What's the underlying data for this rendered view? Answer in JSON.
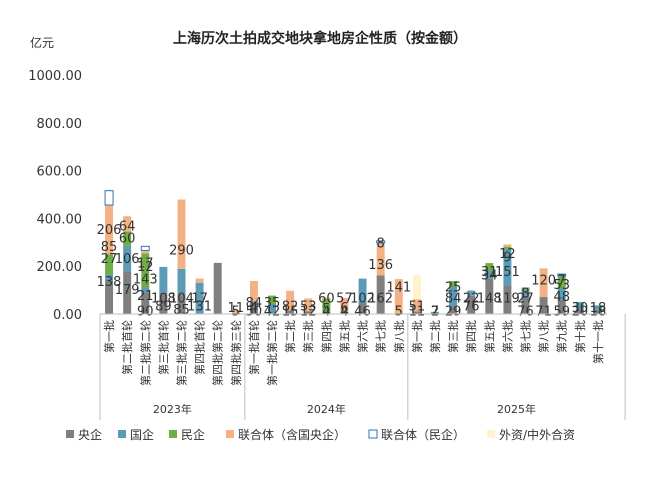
{
  "chart_data": {
    "type": "bar",
    "stacked": true,
    "title": "上海历次土拍成交地块拿地房企性质（按金额）",
    "unit": "亿元",
    "ylim": [
      0,
      1000
    ],
    "yticks": [
      "0.00",
      "200.00",
      "400.00",
      "600.00",
      "800.00",
      "1000.00"
    ],
    "grid": false,
    "legend_position": "bottom",
    "series_order": [
      "central",
      "state",
      "private",
      "jv_central",
      "jv_private",
      "foreign"
    ],
    "series": [
      {
        "key": "central",
        "name": "央企",
        "color": "#7f7f7f",
        "marker": "solid"
      },
      {
        "key": "state",
        "name": "国企",
        "color": "#5b9bb5",
        "marker": "solid"
      },
      {
        "key": "private",
        "name": "民企",
        "color": "#70ad47",
        "marker": "solid"
      },
      {
        "key": "jv_central",
        "name": "联合体（含国央企）",
        "color": "#f4b183",
        "marker": "solid"
      },
      {
        "key": "jv_private",
        "name": "联合体（民企）",
        "color": "#ffffff",
        "marker": "outline"
      },
      {
        "key": "foreign",
        "name": "外资/中外合资",
        "color": "#fff2cc",
        "marker": "solid"
      }
    ],
    "groups": [
      {
        "label": "2023年",
        "start": 0,
        "end": 7
      },
      {
        "label": "2024年",
        "start": 8,
        "end": 16
      },
      {
        "label": "2025年",
        "start": 17,
        "end": 28
      }
    ],
    "categories": [
      {
        "label": "第一批",
        "values": {
          "central": 138,
          "state": 27,
          "private": 85,
          "jv_central": 206,
          "jv_private": 60
        }
      },
      {
        "label": "第二批首轮",
        "values": {
          "central": 179,
          "state": 106,
          "private": 60,
          "jv_central": 64
        }
      },
      {
        "label": "第二批第二轮",
        "values": {
          "central": 90,
          "state": 21,
          "private": 143,
          "jv_central": 12,
          "jv_private": 17
        }
      },
      {
        "label": "第三批首轮",
        "values": {
          "central": 89,
          "state": 108
        }
      },
      {
        "label": "第三批第二轮",
        "values": {
          "central": 85,
          "state": 104,
          "jv_central": 290
        }
      },
      {
        "label": "第四批首轮",
        "values": {
          "state": 131,
          "jv_central": 17
        }
      },
      {
        "label": "第四批第二轮",
        "values": {
          "central": 214
        }
      },
      {
        "label": "第四批第三轮",
        "values": {
          "central": 5,
          "jv_central": 11
        }
      },
      {
        "label": "第一批首轮",
        "values": {
          "central": 50,
          "state": 4,
          "jv_central": 84
        }
      },
      {
        "label": "第一批第二轮",
        "values": {
          "state": 42,
          "private": 35
        }
      },
      {
        "label": "第二批",
        "values": {
          "central": 15,
          "jv_central": 82
        }
      },
      {
        "label": "第三批",
        "values": {
          "central": 12,
          "jv_central": 53
        }
      },
      {
        "label": "第四批",
        "values": {
          "central": 4,
          "private": 60,
          "jv_central": 5
        }
      },
      {
        "label": "第五批",
        "values": {
          "central": 4,
          "state": 6,
          "jv_central": 57
        }
      },
      {
        "label": "第六批",
        "values": {
          "central": 46,
          "state": 102
        }
      },
      {
        "label": "第七批",
        "values": {
          "central": 162,
          "jv_central": 136,
          "jv_private": 8
        }
      },
      {
        "label": "第八批",
        "values": {
          "private": 5,
          "jv_central": 141
        }
      },
      {
        "label": "第一批",
        "values": {
          "central": 11,
          "jv_central": 51,
          "foreign": 100
        }
      },
      {
        "label": "第二批",
        "values": {
          "central": 2,
          "state": 7
        }
      },
      {
        "label": "第三批",
        "values": {
          "central": 29,
          "state": 84,
          "private": 25
        }
      },
      {
        "label": "第四批",
        "values": {
          "central": 76,
          "state": 22
        }
      },
      {
        "label": "第五批",
        "values": {
          "central": 148,
          "state": 34,
          "private": 31
        }
      },
      {
        "label": "第六批",
        "values": {
          "central": 119,
          "state": 151,
          "private": 12,
          "jv_central": 9
        }
      },
      {
        "label": "第七批",
        "values": {
          "central": 76,
          "state": 27,
          "private": 8
        }
      },
      {
        "label": "第八批",
        "values": {
          "central": 71,
          "jv_central": 120
        }
      },
      {
        "label": "第九批",
        "values": {
          "central": 59,
          "state": 48,
          "private": 53,
          "jv_private": 7
        }
      },
      {
        "label": "第十批",
        "values": {
          "central": 20,
          "state": 30
        }
      },
      {
        "label": "第十一批",
        "values": {
          "central": 18,
          "state": 18
        }
      }
    ],
    "data_labels": [
      {
        "i": 0,
        "y": 138,
        "t": "138"
      },
      {
        "i": 0,
        "y": 235,
        "t": "27"
      },
      {
        "i": 0,
        "y": 285,
        "t": "85"
      },
      {
        "i": 0,
        "y": 355,
        "t": "206"
      },
      {
        "i": 1,
        "y": 104,
        "t": "179"
      },
      {
        "i": 1,
        "y": 235,
        "t": "106"
      },
      {
        "i": 1,
        "y": 320,
        "t": "60"
      },
      {
        "i": 1,
        "y": 370,
        "t": "64"
      },
      {
        "i": 2,
        "y": 15,
        "t": "90"
      },
      {
        "i": 2,
        "y": 80,
        "t": "21"
      },
      {
        "i": 2,
        "y": 148,
        "t": "143"
      },
      {
        "i": 2,
        "y": 200,
        "t": "12"
      },
      {
        "i": 2,
        "y": 215,
        "t": "17"
      },
      {
        "i": 3,
        "y": 35,
        "t": "89"
      },
      {
        "i": 3,
        "y": 70,
        "t": "108"
      },
      {
        "i": 4,
        "y": 20,
        "t": "85"
      },
      {
        "i": 4,
        "y": 70,
        "t": "104"
      },
      {
        "i": 4,
        "y": 270,
        "t": "290"
      },
      {
        "i": 5,
        "y": 35,
        "t": "131"
      },
      {
        "i": 5,
        "y": 70,
        "t": "17"
      },
      {
        "i": 7,
        "y": 15,
        "t": "5"
      },
      {
        "i": 7,
        "y": 30,
        "t": "11"
      },
      {
        "i": 8,
        "y": 15,
        "t": "50"
      },
      {
        "i": 8,
        "y": 30,
        "t": "4"
      },
      {
        "i": 8,
        "y": 50,
        "t": "84"
      },
      {
        "i": 9,
        "y": 15,
        "t": "42"
      },
      {
        "i": 9,
        "y": 50,
        "t": "35"
      },
      {
        "i": 10,
        "y": 15,
        "t": "15"
      },
      {
        "i": 10,
        "y": 35,
        "t": "82"
      },
      {
        "i": 11,
        "y": 15,
        "t": "12"
      },
      {
        "i": 11,
        "y": 35,
        "t": "53"
      },
      {
        "i": 12,
        "y": 15,
        "t": "4"
      },
      {
        "i": 12,
        "y": 25,
        "t": "5"
      },
      {
        "i": 12,
        "y": 70,
        "t": "60"
      },
      {
        "i": 13,
        "y": 15,
        "t": "4"
      },
      {
        "i": 13,
        "y": 30,
        "t": "6"
      },
      {
        "i": 13,
        "y": 70,
        "t": "57"
      },
      {
        "i": 14,
        "y": 15,
        "t": "46"
      },
      {
        "i": 14,
        "y": 70,
        "t": "102"
      },
      {
        "i": 15,
        "y": 70,
        "t": "162"
      },
      {
        "i": 15,
        "y": 210,
        "t": "136"
      },
      {
        "i": 15,
        "y": 300,
        "t": "8"
      },
      {
        "i": 16,
        "y": 15,
        "t": "5"
      },
      {
        "i": 16,
        "y": 115,
        "t": "141"
      },
      {
        "i": 17,
        "y": 15,
        "t": "11"
      },
      {
        "i": 17,
        "y": 35,
        "t": "51"
      },
      {
        "i": 18,
        "y": 15,
        "t": "2"
      },
      {
        "i": 18,
        "y": 15,
        "t": "7"
      },
      {
        "i": 19,
        "y": 15,
        "t": "29"
      },
      {
        "i": 19,
        "y": 70,
        "t": "84"
      },
      {
        "i": 19,
        "y": 115,
        "t": "25"
      },
      {
        "i": 20,
        "y": 35,
        "t": "76"
      },
      {
        "i": 20,
        "y": 70,
        "t": "22"
      },
      {
        "i": 21,
        "y": 70,
        "t": "148"
      },
      {
        "i": 21,
        "y": 165,
        "t": "34"
      },
      {
        "i": 21,
        "y": 180,
        "t": "31"
      },
      {
        "i": 22,
        "y": 70,
        "t": "119"
      },
      {
        "i": 22,
        "y": 180,
        "t": "151"
      },
      {
        "i": 22,
        "y": 240,
        "t": "9"
      },
      {
        "i": 22,
        "y": 255,
        "t": "12"
      },
      {
        "i": 23,
        "y": 15,
        "t": "76"
      },
      {
        "i": 23,
        "y": 70,
        "t": "27"
      },
      {
        "i": 23,
        "y": 90,
        "t": "8"
      },
      {
        "i": 24,
        "y": 15,
        "t": "71"
      },
      {
        "i": 24,
        "y": 145,
        "t": "120"
      },
      {
        "i": 25,
        "y": 15,
        "t": "59"
      },
      {
        "i": 25,
        "y": 75,
        "t": "48"
      },
      {
        "i": 25,
        "y": 125,
        "t": "53"
      },
      {
        "i": 25,
        "y": 145,
        "t": "7"
      },
      {
        "i": 26,
        "y": 15,
        "t": "20"
      },
      {
        "i": 26,
        "y": 30,
        "t": "30"
      },
      {
        "i": 27,
        "y": 15,
        "t": "18"
      },
      {
        "i": 27,
        "y": 30,
        "t": "18"
      }
    ]
  }
}
